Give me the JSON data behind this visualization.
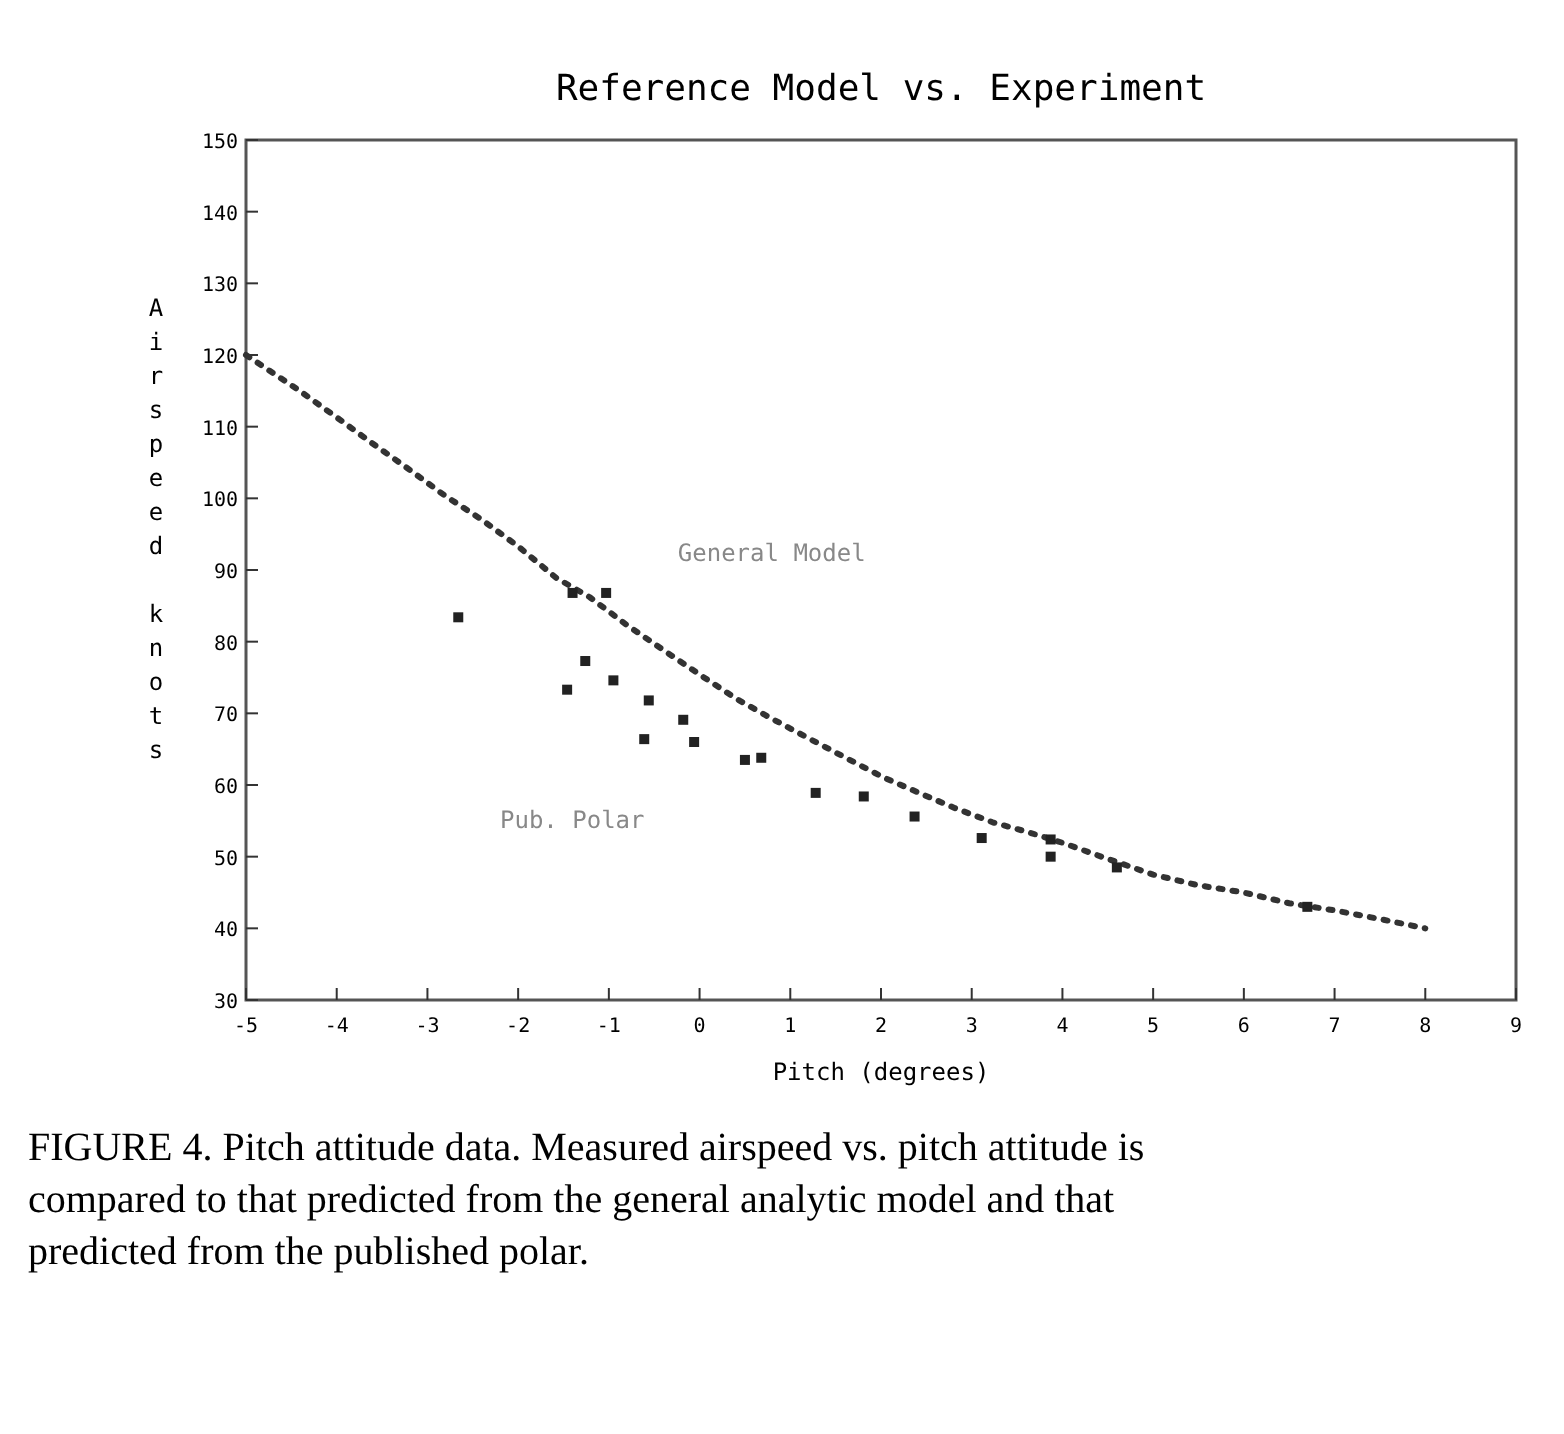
{
  "chart_data": {
    "type": "line",
    "title": "Reference Model vs. Experiment",
    "xlabel": "Pitch (degrees)",
    "ylabel": "Airspeed knots",
    "xlim": [
      -5,
      9
    ],
    "xticks": [
      -5,
      -4,
      -3,
      -2,
      -1,
      0,
      1,
      2,
      3,
      4,
      5,
      6,
      7,
      8,
      9
    ],
    "ylim": [
      30,
      150
    ],
    "yticks": [
      30,
      40,
      50,
      60,
      70,
      80,
      90,
      100,
      110,
      120,
      130,
      140,
      150
    ],
    "series": [
      {
        "color": "#333333",
        "line_style": "dotted",
        "x": [
          -5,
          -4.42,
          -4.0,
          -3.61,
          -3.22,
          -2.81,
          -2.41,
          -2.0,
          -1.58,
          -1.21,
          -0.81,
          -0.43,
          -0.01,
          0.41,
          0.79,
          1.19,
          1.61,
          2.02,
          2.42,
          2.81,
          3.23,
          3.6,
          4.01,
          4.43,
          5,
          5.5,
          6,
          6.5,
          7,
          7.5,
          8
        ],
        "values": [
          120,
          115.1,
          111.3,
          107.7,
          104.2,
          100.4,
          97.1,
          93.3,
          88.9,
          86.2,
          82.4,
          79.1,
          75.5,
          72,
          69.3,
          66.6,
          63.8,
          61.1,
          58.9,
          56.8,
          54.8,
          53.5,
          51.9,
          50,
          47.5,
          46,
          45,
          43.5,
          42.5,
          41.3,
          40
        ]
      },
      {
        "type": "scatter",
        "color": "#222222",
        "marker": "square",
        "x": [
          -2.66,
          -1.4,
          -1.03,
          -1.26,
          -1.46,
          -0.95,
          -0.56,
          -0.61,
          -0.18,
          -0.06,
          0.5,
          0.68,
          1.28,
          1.81,
          2.37,
          3.11,
          3.87,
          3.87,
          4.6,
          6.7
        ],
        "values": [
          83.4,
          86.8,
          86.8,
          77.3,
          73.3,
          74.6,
          71.8,
          66.4,
          69.1,
          66,
          63.5,
          63.8,
          58.9,
          58.4,
          55.6,
          52.6,
          52.4,
          50,
          48.5,
          43
        ]
      }
    ],
    "annotations": [
      "General Model",
      "Pub. Polar",
      "FIGURE 4. Pitch attitude data. Measured airspeed vs. pitch attitude is compared to that predicted from the general analytic model and that predicted from the published polar."
    ]
  }
}
